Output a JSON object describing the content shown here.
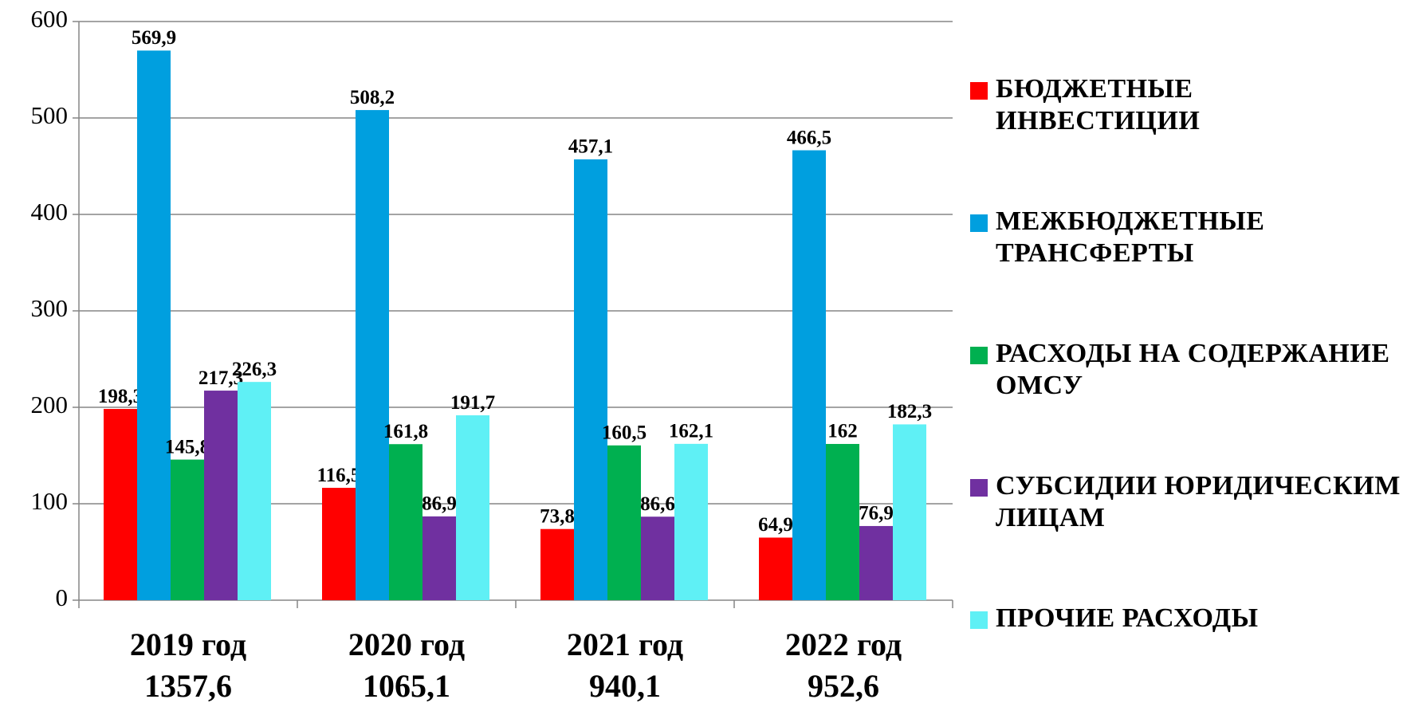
{
  "chart_data": {
    "type": "bar",
    "categories": [
      "2019 год",
      "2020 год",
      "2021 год",
      "2022 год"
    ],
    "totals": [
      1357.6,
      1065.1,
      940.1,
      952.6
    ],
    "totals_labels": [
      "1357,6",
      "1065,1",
      "940,1",
      "952,6"
    ],
    "series": [
      {
        "name": "БЮДЖЕТНЫЕ ИНВЕСТИЦИИ",
        "color": "#ff0000",
        "values": [
          198.3,
          116.5,
          73.8,
          64.9
        ],
        "value_labels": [
          "198,3",
          "116,5",
          "73,8",
          "64,9"
        ]
      },
      {
        "name": "МЕЖБЮДЖЕТНЫЕ ТРАНСФЕРТЫ",
        "color": "#009fdf",
        "values": [
          569.9,
          508.2,
          457.1,
          466.5
        ],
        "value_labels": [
          "569,9",
          "508,2",
          "457,1",
          "466,5"
        ]
      },
      {
        "name": "РАСХОДЫ НА СОДЕРЖАНИЕ ОМСУ",
        "color": "#00b050",
        "values": [
          145.8,
          161.8,
          160.5,
          162
        ],
        "value_labels": [
          "145,8",
          "161,8",
          "160,5",
          "162"
        ]
      },
      {
        "name": "СУБСИДИИ ЮРИДИЧЕСКИМ ЛИЦАМ",
        "color": "#7030a0",
        "values": [
          217.3,
          86.9,
          86.6,
          76.9
        ],
        "value_labels": [
          "217,3",
          "86,9",
          "86,6",
          "76,9"
        ]
      },
      {
        "name": "ПРОЧИЕ РАСХОДЫ",
        "color": "#5ff0f5",
        "values": [
          226.3,
          191.7,
          162.1,
          182.3
        ],
        "value_labels": [
          "226,3",
          "191,7",
          "162,1",
          "182,3"
        ]
      }
    ],
    "ylim": [
      0,
      600
    ],
    "yticks": [
      0,
      100,
      200,
      300,
      400,
      500,
      600
    ],
    "grid": true,
    "legend": "right"
  }
}
